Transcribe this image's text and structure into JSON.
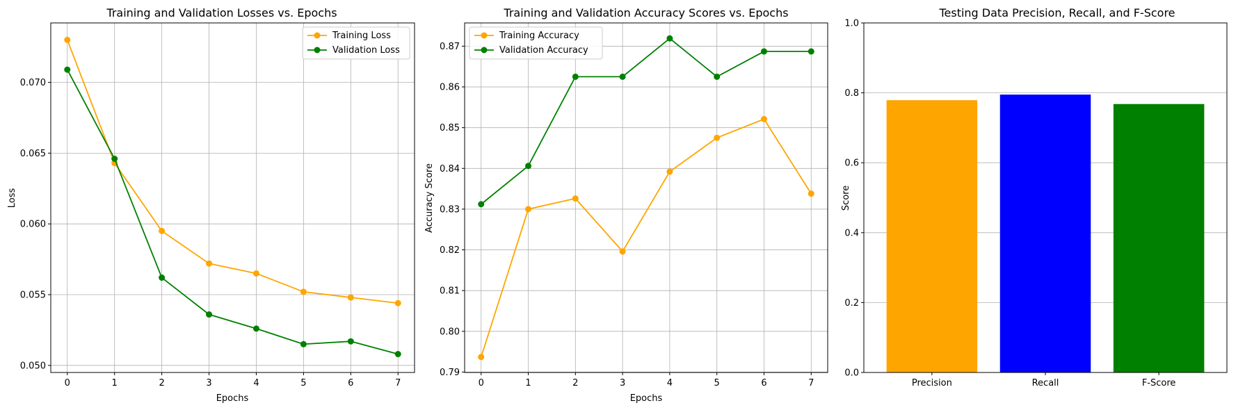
{
  "chart_data": [
    {
      "type": "line",
      "title": "Training and Validation Losses vs. Epochs",
      "xlabel": "Epochs",
      "ylabel": "Loss",
      "x": [
        0,
        1,
        2,
        3,
        4,
        5,
        6,
        7
      ],
      "xticks": [
        0,
        1,
        2,
        3,
        4,
        5,
        6,
        7
      ],
      "xlim": [
        -0.35,
        7.35
      ],
      "yticks": [
        0.05,
        0.055,
        0.06,
        0.065,
        0.07
      ],
      "ytick_labels": [
        "0.050",
        "0.055",
        "0.060",
        "0.065",
        "0.070"
      ],
      "ylim": [
        0.0495,
        0.0742
      ],
      "grid": true,
      "legend": "upper right",
      "series": [
        {
          "name": "Training Loss",
          "color": "#FFA500",
          "values": [
            0.073,
            0.0643,
            0.0595,
            0.0572,
            0.0565,
            0.0552,
            0.0548,
            0.0544
          ]
        },
        {
          "name": "Validation Loss",
          "color": "#008000",
          "values": [
            0.0709,
            0.0646,
            0.0562,
            0.0536,
            0.0526,
            0.0515,
            0.0517,
            0.0508
          ]
        }
      ]
    },
    {
      "type": "line",
      "title": "Training and Validation Accuracy Scores vs. Epochs",
      "xlabel": "Epochs",
      "ylabel": "Accuracy Score",
      "x": [
        0,
        1,
        2,
        3,
        4,
        5,
        6,
        7
      ],
      "xticks": [
        0,
        1,
        2,
        3,
        4,
        5,
        6,
        7
      ],
      "xlim": [
        -0.35,
        7.35
      ],
      "yticks": [
        0.79,
        0.8,
        0.81,
        0.82,
        0.83,
        0.84,
        0.85,
        0.86,
        0.87
      ],
      "ytick_labels": [
        "0.79",
        "0.80",
        "0.81",
        "0.82",
        "0.83",
        "0.84",
        "0.85",
        "0.86",
        "0.87"
      ],
      "ylim": [
        0.7899,
        0.8757
      ],
      "grid": true,
      "legend": "upper left",
      "series": [
        {
          "name": "Training Accuracy",
          "color": "#FFA500",
          "values": [
            0.7937,
            0.83,
            0.8326,
            0.8196,
            0.8392,
            0.8475,
            0.8521,
            0.8338
          ]
        },
        {
          "name": "Validation Accuracy",
          "color": "#008000",
          "values": [
            0.8312,
            0.8406,
            0.8625,
            0.8625,
            0.8719,
            0.8625,
            0.8687,
            0.8687
          ]
        }
      ]
    },
    {
      "type": "bar",
      "title": "Testing Data Precision, Recall, and F-Score",
      "xlabel": "",
      "ylabel": "Score",
      "categories": [
        "Precision",
        "Recall",
        "F-Score"
      ],
      "values": [
        0.779,
        0.795,
        0.768
      ],
      "colors": [
        "#FFA500",
        "#0000FF",
        "#008000"
      ],
      "yticks": [
        0.0,
        0.2,
        0.4,
        0.6,
        0.8,
        1.0
      ],
      "ytick_labels": [
        "0.0",
        "0.2",
        "0.4",
        "0.6",
        "0.8",
        "1.0"
      ],
      "ylim": [
        0,
        1.0
      ],
      "grid": "y"
    }
  ]
}
